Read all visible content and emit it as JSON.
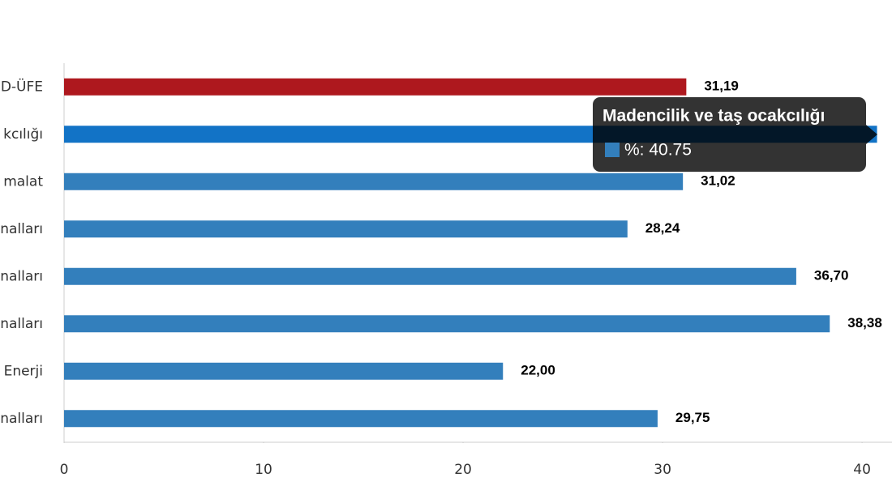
{
  "chart_data": {
    "type": "bar",
    "orientation": "horizontal",
    "categories": [
      "D-ÜFE",
      "kcılığı",
      "malat",
      "nalları",
      "nalları",
      "nalları",
      "Enerji",
      "nalları"
    ],
    "values": [
      31.19,
      40.75,
      31.02,
      28.24,
      36.7,
      38.38,
      22.0,
      29.75
    ],
    "value_labels": [
      "31,19",
      null,
      "31,02",
      "28,24",
      "36,70",
      "38,38",
      "22,00",
      "29,75"
    ],
    "colors": [
      "#ae181e",
      "#1273c6",
      "#337fbc",
      "#337fbc",
      "#337fbc",
      "#337fbc",
      "#337fbc",
      "#337fbc"
    ],
    "xlim": [
      0,
      41.5
    ],
    "xticks": [
      0,
      10,
      20,
      30,
      40
    ],
    "grid": false,
    "tooltip": {
      "title": "Madencilik ve taş ocakcılığı",
      "text": "%: 40.75",
      "color": "#337fbc"
    }
  }
}
